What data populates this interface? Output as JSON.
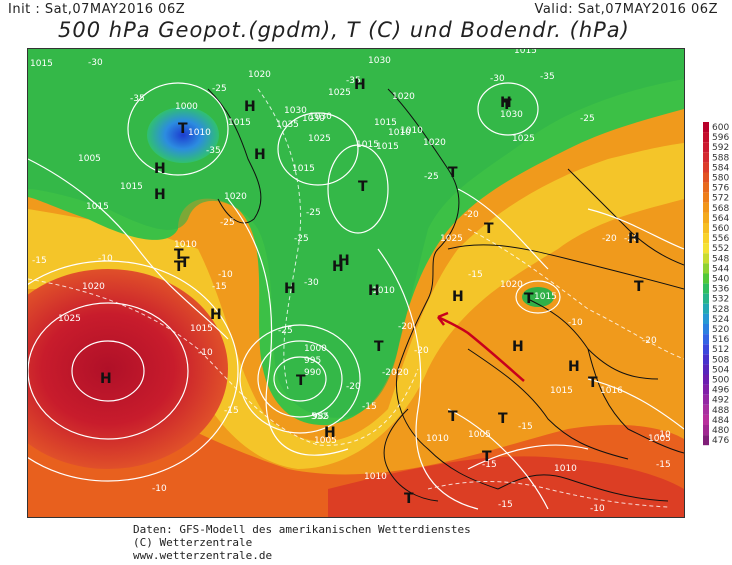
{
  "header": {
    "init": "Init : Sat,07MAY2016 06Z",
    "valid": "Valid: Sat,07MAY2016 06Z",
    "title": "500 hPa Geopot.(gpdm), T (C) und Bodendr. (hPa)"
  },
  "scale": {
    "labels": [
      "600",
      "596",
      "592",
      "588",
      "584",
      "580",
      "576",
      "572",
      "568",
      "564",
      "560",
      "556",
      "552",
      "548",
      "544",
      "540",
      "536",
      "532",
      "528",
      "524",
      "520",
      "516",
      "512",
      "508",
      "504",
      "500",
      "496",
      "492",
      "488",
      "484",
      "480",
      "476"
    ],
    "colors": [
      "#b8002a",
      "#c40e2c",
      "#cc1a30",
      "#d42a30",
      "#dc3c2a",
      "#e25222",
      "#e86a1c",
      "#ee7e18",
      "#f29618",
      "#f4aa1c",
      "#f6be22",
      "#f8d22a",
      "#f4e234",
      "#c8dc30",
      "#8ed232",
      "#52c83a",
      "#30be60",
      "#28b48a",
      "#24a8b4",
      "#2898d4",
      "#2c80e0",
      "#3464e4",
      "#3c48dc",
      "#4832cc",
      "#5826bc",
      "#6c1eb0",
      "#8020a8",
      "#9428a4",
      "#a830a0",
      "#b8309c",
      "#a02890",
      "#801e78"
    ]
  },
  "map": {
    "isobars": [
      "1015",
      "1010",
      "1000",
      "1005",
      "1015",
      "1015",
      "1010",
      "1025",
      "1020",
      "1020",
      "1015",
      "1030",
      "1035",
      "1030",
      "1025",
      "1020",
      "1015",
      "1010",
      "1030",
      "1020",
      "1025",
      "1030",
      "1015",
      "1015",
      "1015",
      "1010",
      "1020",
      "1025",
      "1025",
      "1030",
      "1015",
      "1010",
      "1020",
      "1015",
      "1015",
      "1000",
      "995",
      "990",
      "985",
      "1005",
      "1010",
      "1005",
      "1015",
      "1016",
      "1005",
      "1010",
      "1010"
    ],
    "temps": [
      "-30",
      "-35",
      "-25",
      "-35",
      "-35",
      "-30",
      "-25",
      "-35",
      "-25",
      "-25",
      "-20",
      "-20",
      "-25",
      "-25",
      "-20",
      "-15",
      "-10",
      "-10",
      "-15",
      "-25",
      "-30",
      "-20",
      "-20",
      "-20",
      "-20",
      "-20",
      "-10",
      "-15",
      "-15",
      "-10",
      "-10",
      "-15",
      "-10",
      "-15",
      "-15",
      "-10",
      "-15",
      "-15",
      "-20"
    ],
    "highs": [
      "H",
      "H",
      "H",
      "H",
      "H",
      "H",
      "H",
      "H",
      "H",
      "H",
      "H",
      "H",
      "H",
      "H",
      "H",
      "H",
      "H"
    ],
    "lows": [
      "T",
      "T",
      "T",
      "T",
      "T",
      "T",
      "T",
      "T",
      "T",
      "T",
      "T",
      "T",
      "T",
      "T",
      "T",
      "T",
      "T"
    ],
    "dashed_contour": "552"
  },
  "footer": {
    "line1": "Daten: GFS-Modell des amerikanischen Wetterdienstes",
    "line2": "(C) Wetterzentrale",
    "line3": "www.wetterzentrale.de"
  }
}
